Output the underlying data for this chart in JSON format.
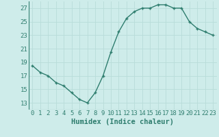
{
  "x": [
    0,
    1,
    2,
    3,
    4,
    5,
    6,
    7,
    8,
    9,
    10,
    11,
    12,
    13,
    14,
    15,
    16,
    17,
    18,
    19,
    20,
    21,
    22,
    23
  ],
  "y": [
    18.5,
    17.5,
    17.0,
    16.0,
    15.5,
    14.5,
    13.5,
    13.0,
    14.5,
    17.0,
    20.5,
    23.5,
    25.5,
    26.5,
    27.0,
    27.0,
    27.5,
    27.5,
    27.0,
    27.0,
    25.0,
    24.0,
    23.5,
    23.0
  ],
  "line_color": "#2e7d6e",
  "marker": "+",
  "bg_color": "#ceecea",
  "grid_color": "#b8dcd9",
  "xlabel": "Humidex (Indice chaleur)",
  "xlabel_fontsize": 7.5,
  "tick_fontsize": 6.5,
  "ylim": [
    12,
    28
  ],
  "yticks": [
    13,
    15,
    17,
    19,
    21,
    23,
    25,
    27
  ],
  "xticks": [
    0,
    1,
    2,
    3,
    4,
    5,
    6,
    7,
    8,
    9,
    10,
    11,
    12,
    13,
    14,
    15,
    16,
    17,
    18,
    19,
    20,
    21,
    22,
    23
  ],
  "tick_color": "#2e7d6e",
  "marker_size": 3.5,
  "linewidth": 1.0,
  "xlim": [
    -0.5,
    23.5
  ]
}
